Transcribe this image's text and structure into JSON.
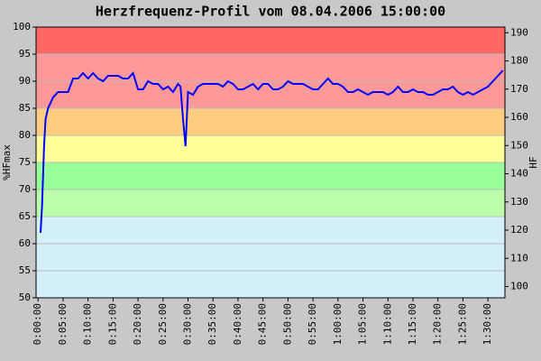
{
  "chart_data": {
    "type": "line",
    "title": "Herzfrequenz-Profil vom 08.04.2006 15:00:00",
    "y_label": "%HFmax",
    "y2_label": "HF",
    "xlim": [
      -0.4,
      93.4
    ],
    "ylim": [
      50,
      100
    ],
    "y2lim": [
      96,
      192
    ],
    "xticks": [
      {
        "value": 0,
        "label": "0:00:00"
      },
      {
        "value": 5,
        "label": "0:05:00"
      },
      {
        "value": 10,
        "label": "0:10:00"
      },
      {
        "value": 15,
        "label": "0:15:00"
      },
      {
        "value": 20,
        "label": "0:20:00"
      },
      {
        "value": 25,
        "label": "0:25:00"
      },
      {
        "value": 30,
        "label": "0:30:00"
      },
      {
        "value": 35,
        "label": "0:35:00"
      },
      {
        "value": 40,
        "label": "0:40:00"
      },
      {
        "value": 45,
        "label": "0:45:00"
      },
      {
        "value": 50,
        "label": "0:50:00"
      },
      {
        "value": 55,
        "label": "0:55:00"
      },
      {
        "value": 60,
        "label": "1:00:00"
      },
      {
        "value": 65,
        "label": "1:05:00"
      },
      {
        "value": 70,
        "label": "1:10:00"
      },
      {
        "value": 75,
        "label": "1:15:00"
      },
      {
        "value": 80,
        "label": "1:20:00"
      },
      {
        "value": 85,
        "label": "1:25:00"
      },
      {
        "value": 90,
        "label": "1:30:00"
      }
    ],
    "yticks": [
      50,
      55,
      60,
      65,
      70,
      75,
      80,
      85,
      90,
      95,
      100
    ],
    "y2ticks": [
      100,
      110,
      120,
      130,
      140,
      150,
      160,
      170,
      180,
      190
    ],
    "grid": true,
    "zones": [
      {
        "from": 95,
        "to": 100,
        "color": "#ff6666"
      },
      {
        "from": 85,
        "to": 95,
        "color": "#ff9999"
      },
      {
        "from": 80,
        "to": 85,
        "color": "#ffcc80"
      },
      {
        "from": 75,
        "to": 80,
        "color": "#ffff99"
      },
      {
        "from": 70,
        "to": 75,
        "color": "#99ff99"
      },
      {
        "from": 65,
        "to": 70,
        "color": "#bbffaa"
      },
      {
        "from": 50,
        "to": 65,
        "color": "#d4f0f8"
      }
    ],
    "x": [
      0.5,
      0.8,
      1.2,
      1.5,
      2,
      3,
      4,
      5,
      6,
      7,
      8,
      9,
      10,
      11,
      12,
      13,
      14,
      15,
      16,
      17,
      18,
      19,
      20,
      21,
      22,
      23,
      24,
      25,
      26,
      27,
      28,
      28.5,
      29,
      29.5,
      30,
      31,
      32,
      33,
      34,
      35,
      36,
      37,
      38,
      39,
      40,
      41,
      42,
      43,
      44,
      45,
      46,
      47,
      48,
      49,
      50,
      51,
      52,
      53,
      54,
      55,
      56,
      57,
      58,
      59,
      60,
      61,
      62,
      63,
      64,
      65,
      66,
      67,
      68,
      69,
      70,
      71,
      72,
      73,
      74,
      75,
      76,
      77,
      78,
      79,
      80,
      81,
      82,
      83,
      84,
      85,
      86,
      87,
      88,
      89,
      90,
      91,
      92,
      93
    ],
    "series": [
      {
        "color": "#0000ff",
        "values": [
          62,
          67,
          78,
          83,
          85,
          87,
          88,
          88,
          88,
          90.5,
          90.5,
          91.5,
          90.5,
          91.5,
          90.5,
          90,
          91,
          91,
          91,
          90.5,
          90.5,
          91.5,
          88.5,
          88.5,
          90,
          89.5,
          89.5,
          88.5,
          89,
          88,
          89.5,
          89,
          83,
          78,
          88,
          87.5,
          89,
          89.5,
          89.5,
          89.5,
          89.5,
          89,
          90,
          89.5,
          88.5,
          88.5,
          89,
          89.5,
          88.5,
          89.5,
          89.5,
          88.5,
          88.5,
          89,
          90,
          89.5,
          89.5,
          89.5,
          89,
          88.5,
          88.5,
          89.5,
          90.5,
          89.5,
          89.5,
          89,
          88,
          88,
          88.5,
          88,
          87.5,
          88,
          88,
          88,
          87.5,
          88,
          89,
          88,
          88,
          88.5,
          88,
          88,
          87.5,
          87.5,
          88,
          88.5,
          88.5,
          89,
          88,
          87.5,
          88,
          87.5,
          88,
          88.5,
          89,
          90,
          91,
          92
        ]
      }
    ]
  }
}
